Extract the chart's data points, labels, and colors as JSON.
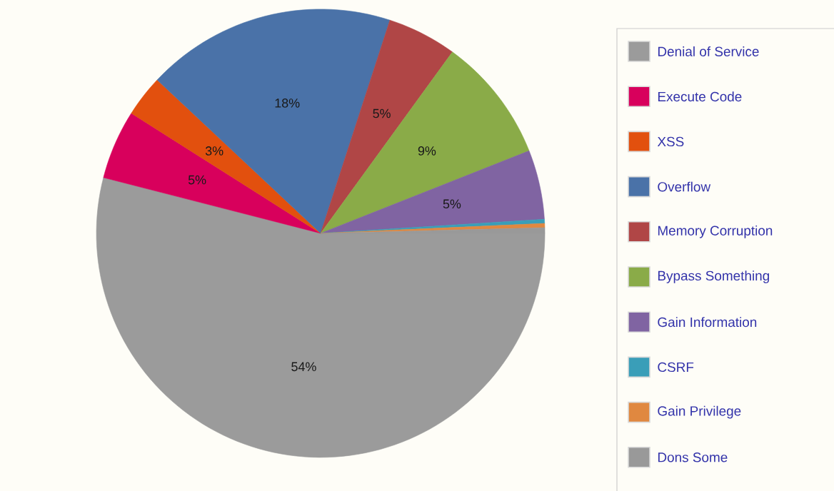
{
  "chart_data": {
    "type": "pie",
    "categories": [
      "Denial of Service",
      "Execute Code",
      "XSS",
      "Overflow",
      "Memory Corruption",
      "Bypass Something",
      "Gain Information",
      "CSRF",
      "Gain Privilege",
      "Dons Some"
    ],
    "values": [
      54,
      5,
      3,
      18,
      5,
      9,
      5,
      0.3,
      0.3,
      0.4
    ],
    "value_labels": [
      "54%",
      "5%",
      "3%",
      "18%",
      "5%",
      "9%",
      "5%",
      null,
      null,
      null
    ],
    "colors": [
      "#9b9b9b",
      "#d8005c",
      "#e2500e",
      "#4a72a8",
      "#b04646",
      "#8aab48",
      "#8064a2",
      "#3a9eb8",
      "#e08840",
      "#999999"
    ],
    "legend": "right"
  }
}
